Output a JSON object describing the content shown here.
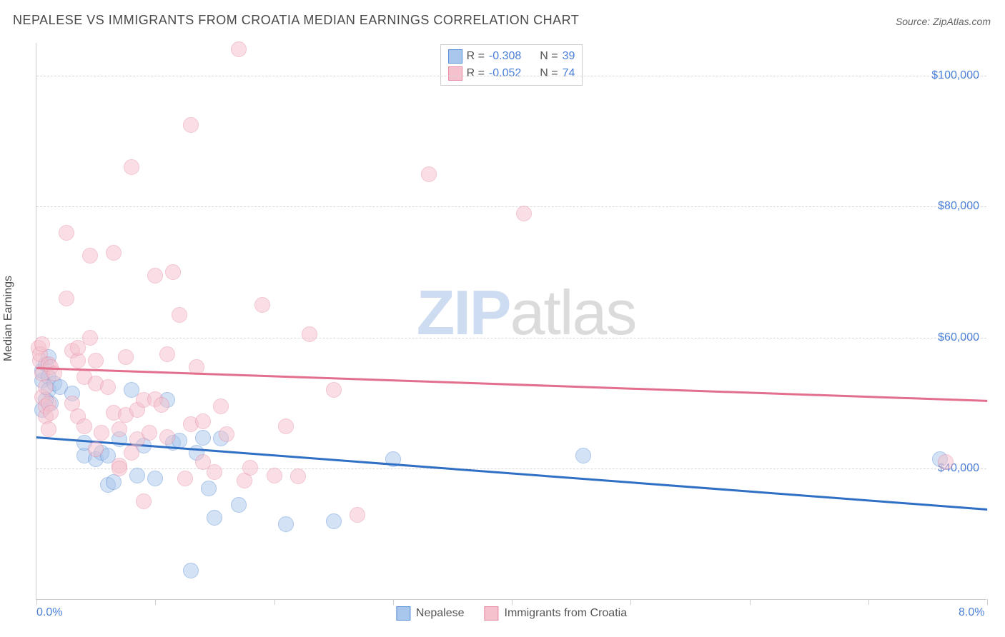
{
  "title": "NEPALESE VS IMMIGRANTS FROM CROATIA MEDIAN EARNINGS CORRELATION CHART",
  "source_label": "Source: ZipAtlas.com",
  "y_axis_label": "Median Earnings",
  "watermark_a": "ZIP",
  "watermark_b": "atlas",
  "chart": {
    "type": "scatter",
    "xlim": [
      0.0,
      8.0
    ],
    "ylim": [
      20000,
      105000
    ],
    "background_color": "#ffffff",
    "grid_color": "#d8d8d8",
    "y_gridlines": [
      40000,
      60000,
      80000,
      100000
    ],
    "y_tick_labels": [
      "$40,000",
      "$60,000",
      "$80,000",
      "$100,000"
    ],
    "x_ticks": [
      0,
      1,
      2,
      3,
      4,
      5,
      6,
      7,
      8
    ],
    "x_tick_labels": {
      "0": "0.0%",
      "8": "8.0%"
    },
    "tick_label_color": "#4a7fd8",
    "marker_radius": 11,
    "marker_opacity": 0.5,
    "series": [
      {
        "name": "Nepalese",
        "fill_color": "#a9c6ec",
        "stroke_color": "#5b8fd6",
        "trend_color": "#2f6fc4",
        "r_value": "-0.308",
        "n_value": "39",
        "trend": {
          "x1": 0.0,
          "y1": 45000,
          "x2": 8.0,
          "y2": 34000
        },
        "points": [
          [
            0.05,
            53500
          ],
          [
            0.05,
            55000
          ],
          [
            0.08,
            56000
          ],
          [
            0.1,
            54000
          ],
          [
            0.1,
            52000
          ],
          [
            0.1,
            57000
          ],
          [
            0.12,
            50000
          ],
          [
            0.08,
            50500
          ],
          [
            0.05,
            49000
          ],
          [
            0.15,
            53000
          ],
          [
            0.2,
            52500
          ],
          [
            0.3,
            51500
          ],
          [
            0.4,
            42000
          ],
          [
            0.4,
            44000
          ],
          [
            0.5,
            41500
          ],
          [
            0.55,
            42500
          ],
          [
            0.6,
            37500
          ],
          [
            0.6,
            42000
          ],
          [
            0.65,
            38000
          ],
          [
            0.7,
            44500
          ],
          [
            0.8,
            52000
          ],
          [
            0.85,
            39000
          ],
          [
            0.9,
            43500
          ],
          [
            1.0,
            38500
          ],
          [
            1.1,
            50500
          ],
          [
            1.15,
            44000
          ],
          [
            1.2,
            44300
          ],
          [
            1.3,
            24500
          ],
          [
            1.35,
            42500
          ],
          [
            1.4,
            44700
          ],
          [
            1.45,
            37000
          ],
          [
            1.5,
            32500
          ],
          [
            1.55,
            44600
          ],
          [
            1.7,
            34500
          ],
          [
            2.1,
            31500
          ],
          [
            2.5,
            32000
          ],
          [
            3.0,
            41500
          ],
          [
            4.6,
            42000
          ],
          [
            7.6,
            41500
          ]
        ]
      },
      {
        "name": "Immigrants from Croatia",
        "fill_color": "#f4c1cd",
        "stroke_color": "#e88aa3",
        "trend_color": "#e36f8e",
        "r_value": "-0.052",
        "n_value": "74",
        "trend": {
          "x1": 0.0,
          "y1": 55500,
          "x2": 8.0,
          "y2": 50500
        },
        "points": [
          [
            0.02,
            58500
          ],
          [
            0.03,
            56500
          ],
          [
            0.03,
            57500
          ],
          [
            0.05,
            54500
          ],
          [
            0.05,
            51000
          ],
          [
            0.05,
            59000
          ],
          [
            0.08,
            48000
          ],
          [
            0.08,
            49500
          ],
          [
            0.08,
            52500
          ],
          [
            0.1,
            50000
          ],
          [
            0.1,
            46000
          ],
          [
            0.1,
            56000
          ],
          [
            0.12,
            55500
          ],
          [
            0.12,
            48500
          ],
          [
            0.15,
            54500
          ],
          [
            0.25,
            66000
          ],
          [
            0.25,
            76000
          ],
          [
            0.3,
            50000
          ],
          [
            0.3,
            58000
          ],
          [
            0.35,
            56500
          ],
          [
            0.35,
            48000
          ],
          [
            0.35,
            58500
          ],
          [
            0.4,
            46500
          ],
          [
            0.4,
            54000
          ],
          [
            0.45,
            60000
          ],
          [
            0.45,
            72500
          ],
          [
            0.5,
            53000
          ],
          [
            0.5,
            56500
          ],
          [
            0.5,
            43000
          ],
          [
            0.55,
            45500
          ],
          [
            0.6,
            52500
          ],
          [
            0.65,
            48500
          ],
          [
            0.65,
            73000
          ],
          [
            0.7,
            40500
          ],
          [
            0.7,
            46000
          ],
          [
            0.75,
            57000
          ],
          [
            0.75,
            48200
          ],
          [
            0.8,
            42500
          ],
          [
            0.8,
            86000
          ],
          [
            0.85,
            49000
          ],
          [
            0.85,
            44500
          ],
          [
            0.9,
            50500
          ],
          [
            0.9,
            35000
          ],
          [
            0.95,
            45500
          ],
          [
            1.0,
            50600
          ],
          [
            1.0,
            69500
          ],
          [
            1.05,
            49800
          ],
          [
            1.1,
            57500
          ],
          [
            1.1,
            44800
          ],
          [
            1.15,
            70000
          ],
          [
            1.2,
            63500
          ],
          [
            1.25,
            38500
          ],
          [
            1.3,
            46800
          ],
          [
            1.3,
            92500
          ],
          [
            1.35,
            55500
          ],
          [
            1.4,
            47200
          ],
          [
            1.4,
            41000
          ],
          [
            1.5,
            39500
          ],
          [
            1.55,
            49500
          ],
          [
            1.6,
            45300
          ],
          [
            1.7,
            104000
          ],
          [
            1.75,
            38200
          ],
          [
            1.8,
            40200
          ],
          [
            1.9,
            65000
          ],
          [
            2.0,
            39000
          ],
          [
            2.1,
            46500
          ],
          [
            2.2,
            38800
          ],
          [
            2.3,
            60500
          ],
          [
            2.5,
            52000
          ],
          [
            2.7,
            33000
          ],
          [
            3.3,
            85000
          ],
          [
            4.1,
            79000
          ],
          [
            7.65,
            41000
          ],
          [
            0.7,
            40000
          ]
        ]
      }
    ]
  },
  "legend_top": {
    "r_label": "R =",
    "n_label": "N ="
  },
  "legend_bottom": [
    {
      "label": "Nepalese",
      "fill": "#a9c6ec",
      "stroke": "#5b8fd6"
    },
    {
      "label": "Immigrants from Croatia",
      "fill": "#f4c1cd",
      "stroke": "#e88aa3"
    }
  ]
}
